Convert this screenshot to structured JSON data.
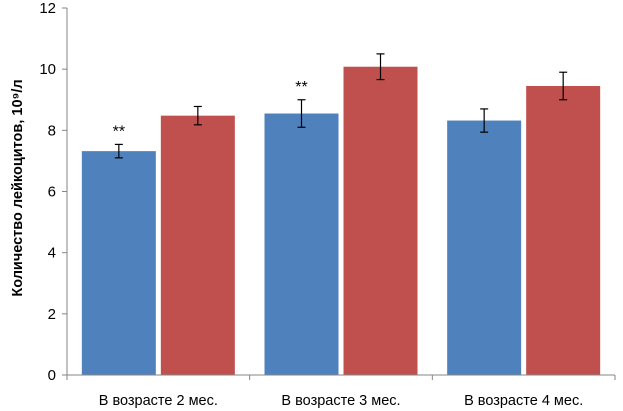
{
  "chart_data": {
    "type": "bar",
    "categories": [
      "В возрасте 2 мес.",
      "В возрасте 3 мес.",
      "В возрасте 4 мес."
    ],
    "series": [
      {
        "color": "#4f81bd",
        "values": [
          7.32,
          8.55,
          8.32
        ],
        "errors": [
          0.22,
          0.45,
          0.38
        ],
        "annotations": [
          "**",
          "**",
          ""
        ]
      },
      {
        "color": "#c0504d",
        "values": [
          8.48,
          10.08,
          9.45
        ],
        "errors": [
          0.3,
          0.42,
          0.45
        ],
        "annotations": [
          "",
          "",
          ""
        ]
      }
    ],
    "ylabel": "Количество лейкоцитов, 10⁹/л",
    "ylim": [
      0,
      12
    ],
    "yticks": [
      0,
      2,
      4,
      6,
      8,
      10,
      12
    ],
    "grid": false
  }
}
